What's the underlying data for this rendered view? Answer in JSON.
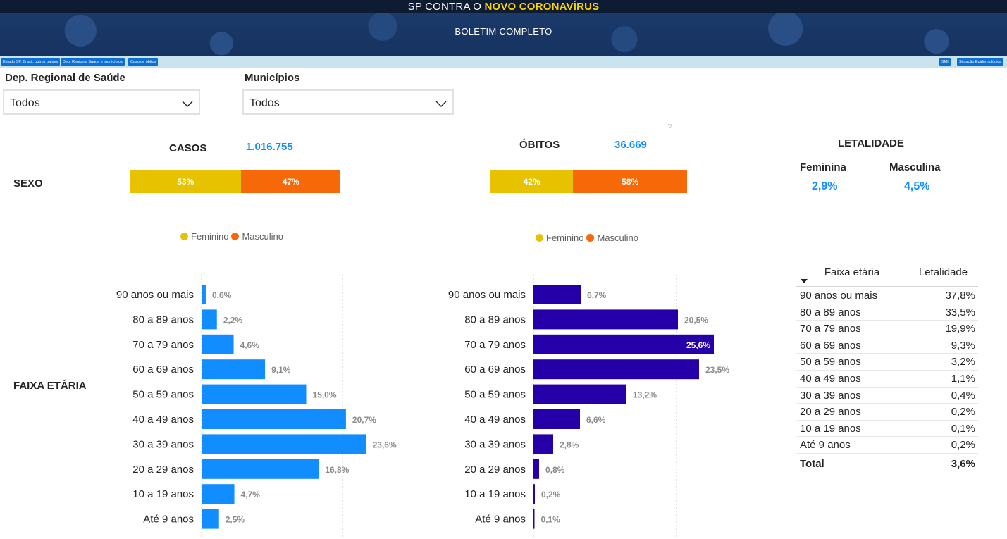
{
  "header": {
    "title_prefix": "SP CONTRA O",
    "title_highlight": "NOVO CORONAVÍRUS",
    "subtitle": "BOLETIM COMPLETO"
  },
  "nav": {
    "left": [
      "Estado SP, Brasil, outros países",
      "Dep. Regional Saúde e municípios",
      "Casos e óbitos"
    ],
    "right": [
      "SMI",
      "Situação Epidemiológica"
    ]
  },
  "filters": {
    "regional": {
      "label": "Dep. Regional de Saúde",
      "value": "Todos"
    },
    "municipios": {
      "label": "Municípios",
      "value": "Todos"
    }
  },
  "kpis": {
    "casos_label": "CASOS",
    "casos_value": "1.016.755",
    "obitos_label": "ÓBITOS",
    "obitos_value": "36.669",
    "letalidade_label": "LETALIDADE"
  },
  "row_labels": {
    "sexo": "SEXO",
    "faixa": "FAIXA ETÁRIA"
  },
  "sexo": {
    "casos": {
      "feminino": "53%",
      "masculino": "47%",
      "feminino_pct": 53,
      "masculino_pct": 47
    },
    "obitos": {
      "feminino": "42%",
      "masculino": "58%",
      "feminino_pct": 42,
      "masculino_pct": 58
    },
    "legend": {
      "feminino": "Feminino",
      "masculino": "Masculino"
    },
    "colors": {
      "feminino": "#e6c200",
      "masculino": "#f76808"
    }
  },
  "letalidade": {
    "feminina_label": "Feminina",
    "feminina_value": "2,9%",
    "masculina_label": "Masculina",
    "masculina_value": "4,5%"
  },
  "chart_data": [
    {
      "type": "bar",
      "title": "",
      "categories": [
        "90 anos ou mais",
        "80 a 89 anos",
        "70 a 79 anos",
        "60 a 69 anos",
        "50 a 59 anos",
        "40 a 49 anos",
        "30 a 39 anos",
        "20 a 29 anos",
        "10 a 19 anos",
        "Até 9 anos"
      ],
      "values": [
        0.6,
        2.2,
        4.6,
        9.1,
        15.0,
        20.7,
        23.6,
        16.8,
        4.7,
        2.5
      ],
      "labels": [
        "0,6%",
        "2,2%",
        "4,6%",
        "9,1%",
        "15,0%",
        "20,7%",
        "23,6%",
        "16,8%",
        "4,7%",
        "2,5%"
      ],
      "color": "#118dff",
      "orientation": "horizontal"
    },
    {
      "type": "bar",
      "title": "",
      "categories": [
        "90 anos ou mais",
        "80 a 89 anos",
        "70 a 79 anos",
        "60 a 69 anos",
        "50 a 59 anos",
        "40 a 49 anos",
        "30 a 39 anos",
        "20 a 29 anos",
        "10 a 19 anos",
        "Até 9 anos"
      ],
      "values": [
        6.7,
        20.5,
        25.6,
        23.5,
        13.2,
        6.6,
        2.8,
        0.8,
        0.2,
        0.1
      ],
      "labels": [
        "6,7%",
        "20,5%",
        "25,6%",
        "23,5%",
        "13,2%",
        "6,6%",
        "2,8%",
        "0,8%",
        "0,2%",
        "0,1%"
      ],
      "color": "#2500a8",
      "orientation": "horizontal"
    }
  ],
  "table": {
    "headers": [
      "Faixa etária",
      "Letalidade"
    ],
    "rows": [
      [
        "90 anos ou mais",
        "37,8%"
      ],
      [
        "80 a 89 anos",
        "33,5%"
      ],
      [
        "70 a 79 anos",
        "19,9%"
      ],
      [
        "60 a 69 anos",
        "9,3%"
      ],
      [
        "50 a 59 anos",
        "3,2%"
      ],
      [
        "40 a 49 anos",
        "1,1%"
      ],
      [
        "30 a 39 anos",
        "0,4%"
      ],
      [
        "20 a 29 anos",
        "0,2%"
      ],
      [
        "10 a 19 anos",
        "0,1%"
      ],
      [
        "Até 9 anos",
        "0,2%"
      ]
    ],
    "total": [
      "Total",
      "3,6%"
    ]
  }
}
